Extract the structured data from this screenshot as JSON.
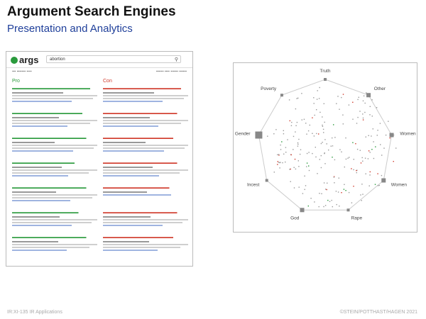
{
  "header": {
    "title": "Argument Search Engines",
    "subtitle": "Presentation and Analytics"
  },
  "footer": {
    "left": "IR:XI-135   IR Applications",
    "right": "©STEIN/POTTHAST/HAGEN 2021"
  },
  "screenshot": {
    "logo": "args",
    "query": "abortion",
    "columns": {
      "pro": {
        "label": "Pro"
      },
      "con": {
        "label": "Con"
      }
    }
  },
  "radial": {
    "axes": [
      "Truth",
      "Other",
      "Women",
      "Women",
      "Rape",
      "God",
      "Incest",
      "Gender",
      "Poverty"
    ],
    "colors": {
      "grid": "#cccccc",
      "pro": "#2a9a3c",
      "con": "#d03a2b",
      "neutral": "#9a9a9a"
    }
  }
}
